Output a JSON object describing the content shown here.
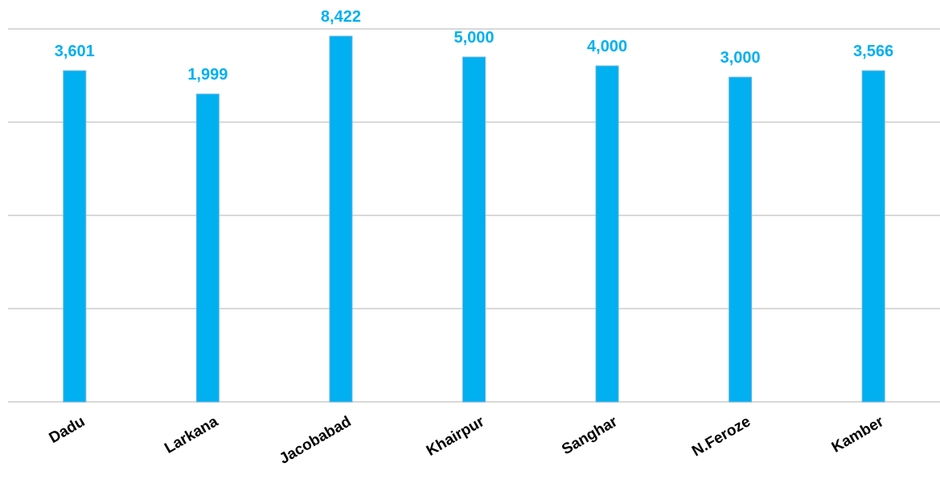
{
  "chart_data": {
    "type": "bar",
    "title": "",
    "xlabel": "",
    "ylabel": "",
    "categories": [
      "Dadu",
      "Larkana",
      "Jacobabad",
      "Khairpur",
      "Sanghar",
      "N.Feroze",
      "Kamber"
    ],
    "values": [
      3601,
      1999,
      8422,
      5000,
      4000,
      3000,
      3566
    ],
    "value_labels": [
      "3,601",
      "1,999",
      "8,422",
      "5,000",
      "4,000",
      "3,000",
      "3,566"
    ],
    "grid": true,
    "legend": "none",
    "colors": {
      "bar": "#00b0f0",
      "data_label": "#00b0f0",
      "gridline": "#d9d9d9"
    }
  }
}
